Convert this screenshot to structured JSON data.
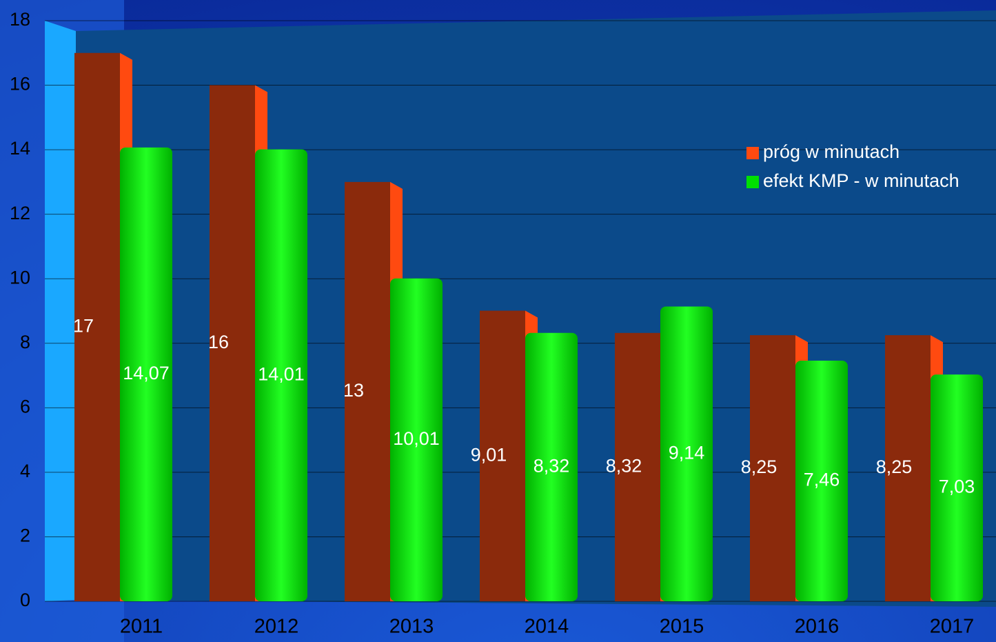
{
  "chart_data": {
    "type": "bar",
    "categories": [
      "2011",
      "2012",
      "2013",
      "2014",
      "2015",
      "2016",
      "2017"
    ],
    "series": [
      {
        "name": "próg w minutach",
        "color": "#8b2a0c",
        "values": [
          17,
          16,
          13,
          9.01,
          8.32,
          8.25,
          8.25
        ],
        "value_labels": [
          "17",
          "16",
          "13",
          "9,01",
          "8,32",
          "8,25",
          "8,25"
        ]
      },
      {
        "name": "efekt KMP - w minutach",
        "color": "#00e000",
        "values": [
          14.07,
          14.01,
          10.01,
          8.32,
          9.14,
          7.46,
          7.03
        ],
        "value_labels": [
          "14,07",
          "14,01",
          "10,01",
          "8,32",
          "9,14",
          "7,46",
          "7,03"
        ]
      }
    ],
    "ylim": [
      0,
      18
    ],
    "yticks": [
      0,
      2,
      4,
      6,
      8,
      10,
      12,
      14,
      16,
      18
    ],
    "grid": true,
    "legend": "upper right"
  }
}
